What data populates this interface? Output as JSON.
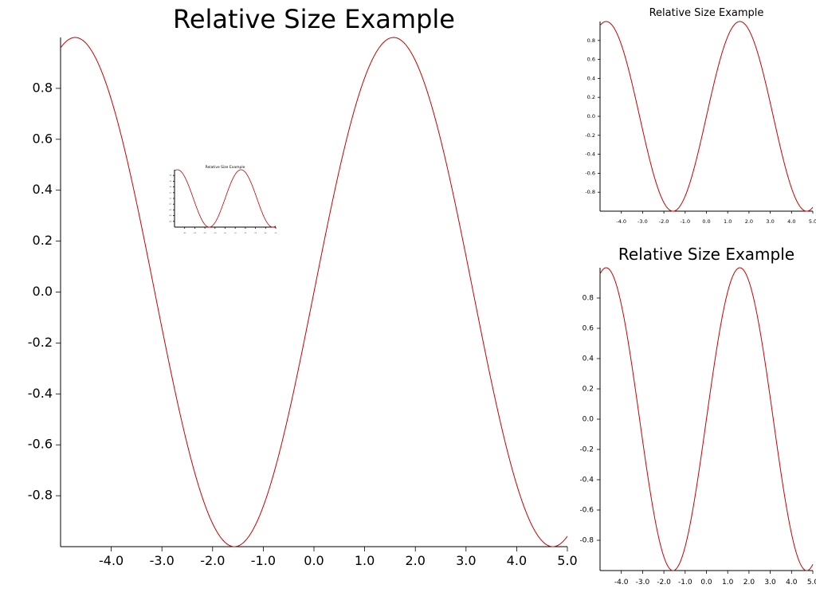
{
  "chart_data": [
    {
      "id": "main",
      "type": "line",
      "title": "Relative Size Example",
      "xlabel": "",
      "ylabel": "",
      "function": "sin(x)",
      "xlim": [
        -5.0,
        5.0
      ],
      "ylim": [
        -1.0,
        1.0
      ],
      "x_ticks": [
        "-4.0",
        "-3.0",
        "-2.0",
        "-1.0",
        "0.0",
        "1.0",
        "2.0",
        "3.0",
        "4.0",
        "5.0"
      ],
      "y_ticks": [
        "-0.8",
        "-0.6",
        "-0.4",
        "-0.2",
        "0.0",
        "0.2",
        "0.4",
        "0.6",
        "0.8"
      ],
      "grid": false,
      "series": [
        {
          "color": "#cc0000"
        }
      ]
    },
    {
      "id": "inset-tiny",
      "type": "line",
      "title": "Relative Size Example",
      "xlabel": "",
      "ylabel": "",
      "function": "sin(x)",
      "xlim": [
        -5.0,
        5.0
      ],
      "ylim": [
        -1.0,
        1.0
      ],
      "x_ticks": [
        "-4.0",
        "-3.0",
        "-2.0",
        "-1.0",
        "0.0",
        "1.0",
        "2.0",
        "3.0",
        "4.0",
        "5.0"
      ],
      "y_ticks": [
        "-0.8",
        "-0.6",
        "-0.4",
        "-0.2",
        "0.0",
        "0.2",
        "0.4",
        "0.6",
        "0.8"
      ],
      "grid": false,
      "series": [
        {
          "color": "#cc0000"
        }
      ]
    },
    {
      "id": "top-right",
      "type": "line",
      "title": "Relative Size Example",
      "xlabel": "",
      "ylabel": "",
      "function": "sin(x)",
      "xlim": [
        -5.0,
        5.0
      ],
      "ylim": [
        -1.0,
        1.0
      ],
      "x_ticks": [
        "-4.0",
        "-3.0",
        "-2.0",
        "-1.0",
        "0.0",
        "1.0",
        "2.0",
        "3.0",
        "4.0",
        "5.0"
      ],
      "y_ticks": [
        "-0.8",
        "-0.6",
        "-0.4",
        "-0.2",
        "0.0",
        "0.2",
        "0.4",
        "0.6",
        "0.8"
      ],
      "grid": false,
      "series": [
        {
          "color": "#cc0000"
        }
      ]
    },
    {
      "id": "bottom-right",
      "type": "line",
      "title": "Relative Size Example",
      "xlabel": "",
      "ylabel": "",
      "function": "sin(x)",
      "xlim": [
        -5.0,
        5.0
      ],
      "ylim": [
        -1.0,
        1.0
      ],
      "x_ticks": [
        "-4.0",
        "-3.0",
        "-2.0",
        "-1.0",
        "0.0",
        "1.0",
        "2.0",
        "3.0",
        "4.0",
        "5.0"
      ],
      "y_ticks": [
        "-0.8",
        "-0.6",
        "-0.4",
        "-0.2",
        "0.0",
        "0.2",
        "0.4",
        "0.6",
        "0.8"
      ],
      "grid": false,
      "series": [
        {
          "color": "#cc0000"
        }
      ]
    }
  ]
}
